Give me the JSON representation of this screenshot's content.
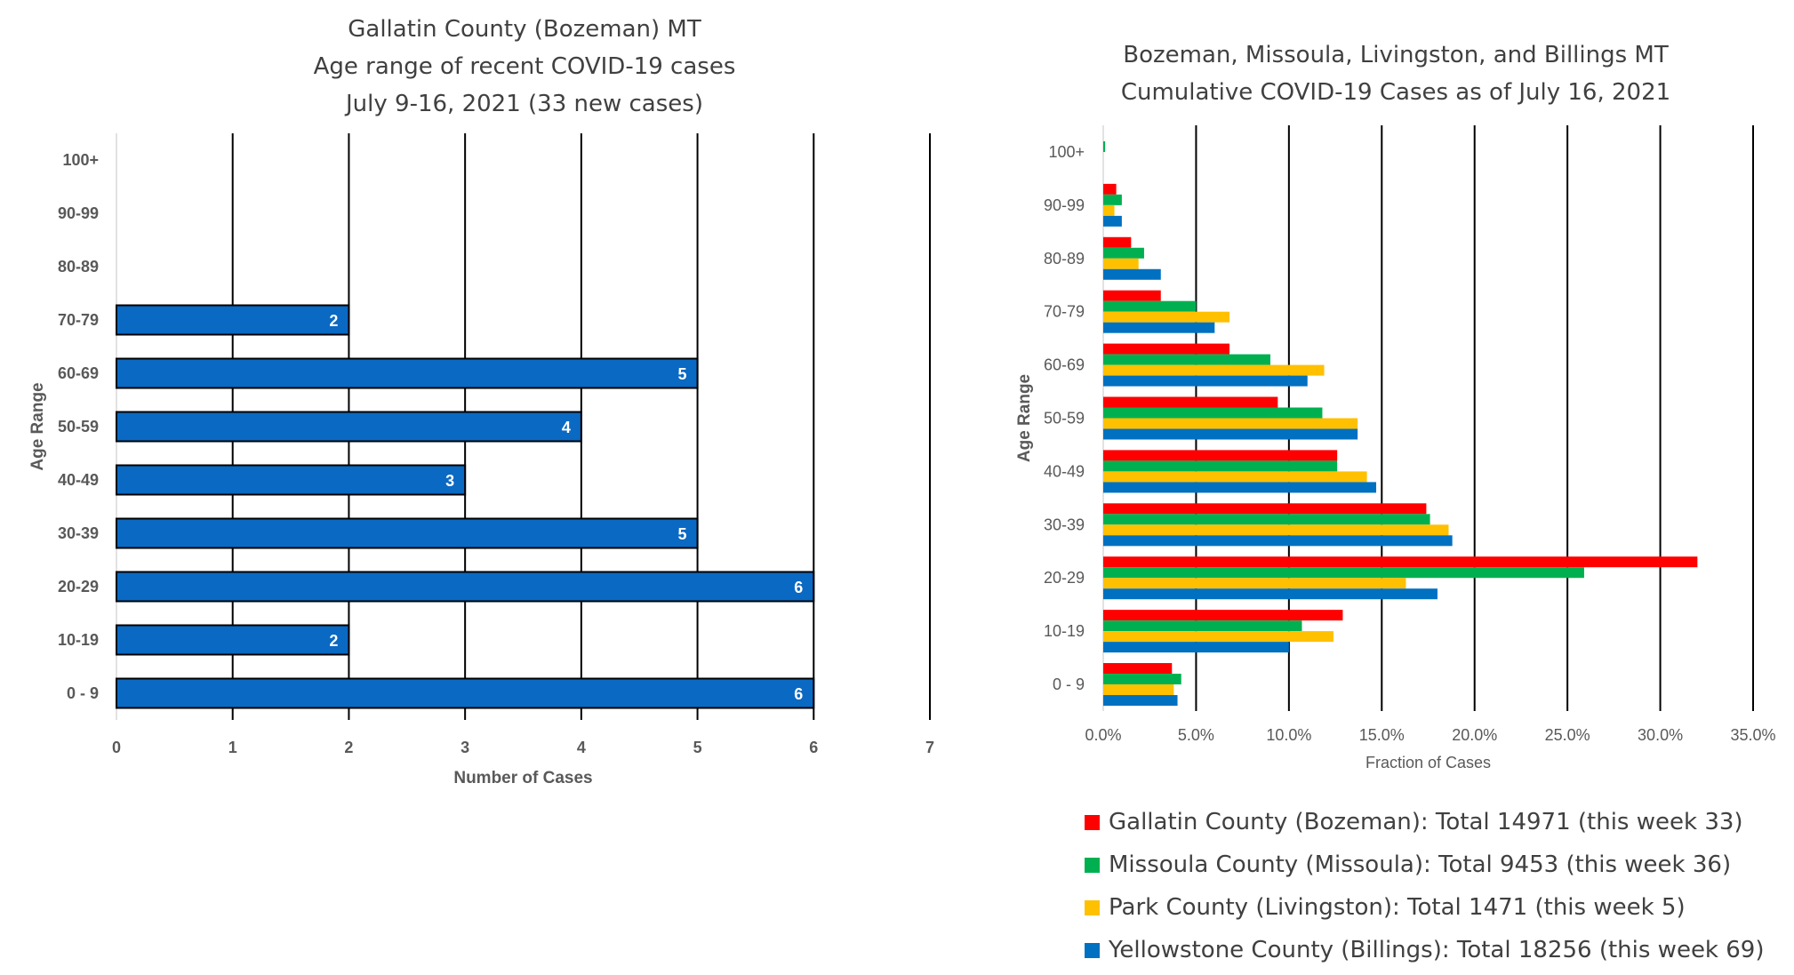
{
  "chart_data": [
    {
      "type": "bar",
      "orientation": "horizontal",
      "title_lines": [
        "Gallatin County (Bozeman) MT",
        "Age range of recent COVID-19 cases",
        "July 9-16, 2021 (33 new cases)"
      ],
      "xlabel": "Number of Cases",
      "ylabel": "Age Range",
      "categories": [
        "0 - 9",
        "10-19",
        "20-29",
        "30-39",
        "40-49",
        "50-59",
        "60-69",
        "70-79",
        "80-89",
        "90-99",
        "100+"
      ],
      "values": [
        6,
        2,
        6,
        5,
        3,
        4,
        5,
        2,
        0,
        0,
        0
      ],
      "data_labels": [
        "6",
        "2",
        "6",
        "5",
        "3",
        "4",
        "5",
        "2",
        "",
        "",
        ""
      ],
      "xlim": [
        0,
        7
      ],
      "xticks": [
        "0",
        "1",
        "2",
        "3",
        "4",
        "5",
        "6",
        "7"
      ],
      "grid": "vertical",
      "bar_color": "#0a69c2"
    },
    {
      "type": "bar",
      "orientation": "horizontal",
      "title_lines": [
        "Bozeman, Missoula, Livingston, and Billings MT",
        "Cumulative COVID-19 Cases as of July 16, 2021"
      ],
      "xlabel": "Fraction of Cases",
      "ylabel": "Age Range",
      "categories": [
        "0 - 9",
        "10-19",
        "20-29",
        "30-39",
        "40-49",
        "50-59",
        "60-69",
        "70-79",
        "80-89",
        "90-99",
        "100+"
      ],
      "xlim": [
        0,
        35
      ],
      "xticks": [
        "0.0%",
        "5.0%",
        "10.0%",
        "15.0%",
        "20.0%",
        "25.0%",
        "30.0%",
        "35.0%"
      ],
      "grid": "vertical",
      "legend_position": "bottom",
      "series": [
        {
          "name": "Gallatin County (Bozeman): Total 14971 (this week 33)",
          "color": "#ff0000",
          "values": [
            3.7,
            12.9,
            32.0,
            17.4,
            12.6,
            9.4,
            6.8,
            3.1,
            1.5,
            0.7,
            0.0
          ]
        },
        {
          "name": "Missoula County (Missoula): Total 9453 (this week 36)",
          "color": "#00b050",
          "values": [
            4.2,
            10.7,
            25.9,
            17.6,
            12.6,
            11.8,
            9.0,
            5.0,
            2.2,
            1.0,
            0.1
          ]
        },
        {
          "name": "Park County (Livingston): Total 1471 (this week 5)",
          "color": "#ffc000",
          "values": [
            3.8,
            12.4,
            16.3,
            18.6,
            14.2,
            13.7,
            11.9,
            6.8,
            1.9,
            0.6,
            0.0
          ]
        },
        {
          "name": "Yellowstone County (Billings): Total 18256 (this week 69)",
          "color": "#0070c0",
          "values": [
            4.0,
            10.0,
            18.0,
            18.8,
            14.7,
            13.7,
            11.0,
            6.0,
            3.1,
            1.0,
            0.0
          ]
        }
      ]
    }
  ]
}
